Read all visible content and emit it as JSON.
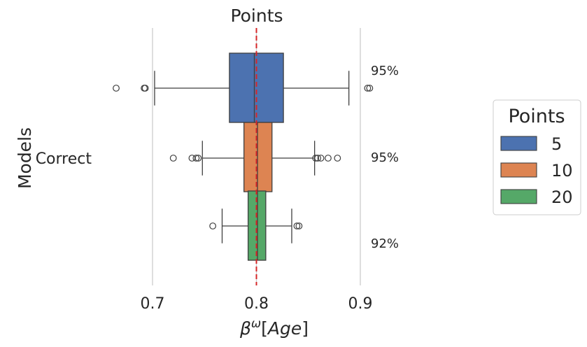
{
  "chart_data": {
    "type": "boxplot",
    "orientation": "horizontal",
    "title": "Points",
    "xlabel": "β^ω[Age]",
    "ylabel": "Models",
    "categories": [
      "Correct"
    ],
    "xlim": [
      0.65,
      0.92
    ],
    "xticks": [
      0.7,
      0.8,
      0.9
    ],
    "xtick_labels": [
      "0.7",
      "0.8",
      "0.9"
    ],
    "reference_line": {
      "value": 0.8,
      "color": "#d62728",
      "style": "dashed"
    },
    "grid": "vertical",
    "legend": {
      "title": "Points",
      "placement": "right",
      "entries": [
        {
          "label": "5",
          "color": "#4c72b0"
        },
        {
          "label": "10",
          "color": "#dd8452"
        },
        {
          "label": "20",
          "color": "#55a868"
        }
      ]
    },
    "series": [
      {
        "name": "5",
        "color": "#4c72b0",
        "q1": 0.774,
        "median": 0.798,
        "q3": 0.826,
        "whisker_low": 0.702,
        "whisker_high": 0.889,
        "outliers": [
          0.665,
          0.692,
          0.693,
          0.907,
          0.909
        ],
        "coverage": "95%"
      },
      {
        "name": "10",
        "color": "#dd8452",
        "q1": 0.788,
        "median": 0.801,
        "q3": 0.815,
        "whisker_low": 0.748,
        "whisker_high": 0.856,
        "outliers": [
          0.72,
          0.738,
          0.742,
          0.744,
          0.857,
          0.859,
          0.862,
          0.869,
          0.878
        ],
        "coverage": "95%"
      },
      {
        "name": "20",
        "color": "#55a868",
        "q1": 0.792,
        "median": 0.801,
        "q3": 0.809,
        "whisker_low": 0.767,
        "whisker_high": 0.834,
        "outliers": [
          0.758,
          0.839,
          0.841
        ],
        "coverage": "92%"
      }
    ]
  }
}
